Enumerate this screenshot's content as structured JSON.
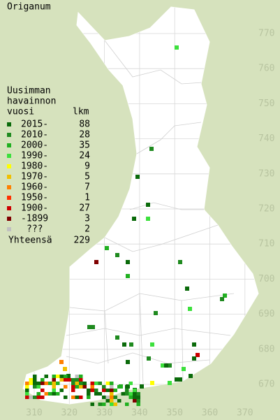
{
  "title": "Origanum",
  "legend": {
    "heading": [
      "Uusimman",
      "havainnon",
      "vuosi"
    ],
    "count_heading": "lkm",
    "rows": [
      {
        "label": "2015-",
        "count": 88,
        "color": "#0a6a0a"
      },
      {
        "label": "2010-",
        "count": 28,
        "color": "#1f8a1f"
      },
      {
        "label": "2000-",
        "count": 35,
        "color": "#20b020"
      },
      {
        "label": "1990-",
        "count": 24,
        "color": "#3ce03c"
      },
      {
        "label": "1980-",
        "count": 9,
        "color": "#ffff00"
      },
      {
        "label": "1970-",
        "count": 5,
        "color": "#f0c000"
      },
      {
        "label": "1960-",
        "count": 7,
        "color": "#ff8000"
      },
      {
        "label": "1950-",
        "count": 1,
        "color": "#ff3000"
      },
      {
        "label": "1900-",
        "count": 27,
        "color": "#cc0000"
      },
      {
        "label": "-1899",
        "count": 3,
        "color": "#800000"
      },
      {
        "label": "???",
        "count": 2,
        "color": "#c0c0c0"
      }
    ],
    "total": {
      "label": "Yhteensä",
      "count": 229
    }
  },
  "axes": {
    "northing": [
      770,
      760,
      750,
      740,
      730,
      720,
      710,
      700,
      690,
      680,
      670
    ],
    "easting": [
      310,
      320,
      330,
      340,
      350,
      360,
      370
    ]
  }
}
